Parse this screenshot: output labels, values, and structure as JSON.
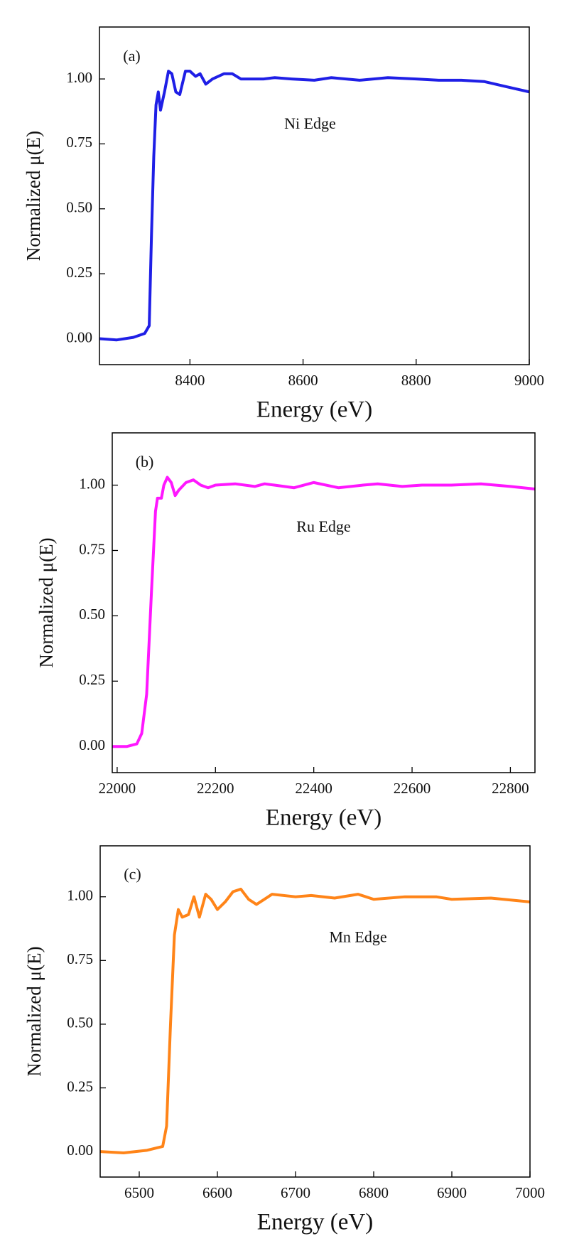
{
  "chart_data": [
    {
      "type": "line",
      "annotations": [
        "(a)",
        "Ni Edge"
      ],
      "x_label": "Energy (eV)",
      "y_label": "Normalized μ(E)",
      "x": [
        8240,
        8270,
        8300,
        8320,
        8328,
        8332,
        8336,
        8340,
        8344,
        8348,
        8355,
        8362,
        8368,
        8375,
        8382,
        8392,
        8400,
        8410,
        8418,
        8428,
        8440,
        8460,
        8475,
        8490,
        8510,
        8530,
        8550,
        8580,
        8620,
        8650,
        8700,
        8750,
        8800,
        8840,
        8880,
        8920,
        8960,
        9000
      ],
      "series": [
        {
          "color": "#1f1fe6",
          "values": [
            0,
            -0.005,
            0.005,
            0.02,
            0.05,
            0.4,
            0.7,
            0.9,
            0.95,
            0.88,
            0.95,
            1.03,
            1.02,
            0.95,
            0.94,
            1.03,
            1.03,
            1.01,
            1.02,
            0.98,
            1.0,
            1.02,
            1.02,
            1.0,
            1.0,
            1.0,
            1.005,
            1.0,
            0.995,
            1.005,
            0.995,
            1.005,
            1.0,
            0.995,
            0.995,
            0.99,
            0.97,
            0.95
          ]
        }
      ],
      "xlim": [
        8240,
        9000
      ],
      "xticks": [
        8400,
        8600,
        8800,
        9000
      ],
      "ylim": [
        -0.1,
        1.2
      ],
      "yticks": [
        {
          "value": 0,
          "label": "0.00"
        },
        {
          "value": 0.25,
          "label": "0.25"
        },
        {
          "value": 0.5,
          "label": "0.50"
        },
        {
          "value": 0.75,
          "label": "0.75"
        },
        {
          "value": 1,
          "label": "1.00"
        }
      ]
    },
    {
      "type": "line",
      "annotations": [
        "(b)",
        "Ru Edge"
      ],
      "x_label": "Energy (eV)",
      "y_label": "Normalized μ(E)",
      "x": [
        21990,
        22020,
        22040,
        22050,
        22060,
        22070,
        22078,
        22082,
        22090,
        22095,
        22102,
        22110,
        22118,
        22125,
        22140,
        22155,
        22170,
        22185,
        22200,
        22240,
        22280,
        22300,
        22320,
        22360,
        22400,
        22450,
        22500,
        22530,
        22580,
        22620,
        22680,
        22740,
        22800,
        22850
      ],
      "series": [
        {
          "color": "#ff17ff",
          "values": [
            0,
            0,
            0.01,
            0.05,
            0.2,
            0.6,
            0.9,
            0.95,
            0.95,
            1.0,
            1.03,
            1.01,
            0.96,
            0.98,
            1.01,
            1.02,
            1.0,
            0.99,
            1.0,
            1.005,
            0.995,
            1.005,
            1.0,
            0.99,
            1.01,
            0.99,
            1.0,
            1.005,
            0.995,
            1.0,
            1.0,
            1.005,
            0.995,
            0.985
          ]
        }
      ],
      "xlim": [
        21990,
        22850
      ],
      "xticks": [
        22000,
        22200,
        22400,
        22600,
        22800
      ],
      "ylim": [
        -0.1,
        1.2
      ],
      "yticks": [
        {
          "value": 0,
          "label": "0.00"
        },
        {
          "value": 0.25,
          "label": "0.25"
        },
        {
          "value": 0.5,
          "label": "0.50"
        },
        {
          "value": 0.75,
          "label": "0.75"
        },
        {
          "value": 1,
          "label": "1.00"
        }
      ]
    },
    {
      "type": "line",
      "annotations": [
        "(c)",
        "Mn Edge"
      ],
      "x_label": "Energy (eV)",
      "y_label": "Normalized μ(E)",
      "x": [
        6450,
        6480,
        6510,
        6530,
        6535,
        6540,
        6545,
        6550,
        6555,
        6563,
        6570,
        6577,
        6585,
        6592,
        6600,
        6610,
        6620,
        6630,
        6640,
        6650,
        6660,
        6670,
        6700,
        6720,
        6750,
        6780,
        6800,
        6840,
        6880,
        6900,
        6950,
        7000
      ],
      "series": [
        {
          "color": "#ff8418",
          "values": [
            0,
            -0.005,
            0.005,
            0.02,
            0.1,
            0.5,
            0.85,
            0.95,
            0.92,
            0.93,
            1.0,
            0.92,
            1.01,
            0.99,
            0.95,
            0.98,
            1.02,
            1.03,
            0.99,
            0.97,
            0.99,
            1.01,
            1.0,
            1.005,
            0.995,
            1.01,
            0.99,
            1.0,
            1.0,
            0.99,
            0.995,
            0.98
          ]
        }
      ],
      "xlim": [
        6450,
        7000
      ],
      "xticks": [
        6500,
        6600,
        6700,
        6800,
        6900,
        7000
      ],
      "ylim": [
        -0.1,
        1.2
      ],
      "yticks": [
        {
          "value": 0,
          "label": "0.00"
        },
        {
          "value": 0.25,
          "label": "0.25"
        },
        {
          "value": 0.5,
          "label": "0.50"
        },
        {
          "value": 0.75,
          "label": "0.75"
        },
        {
          "value": 1,
          "label": "1.00"
        }
      ]
    }
  ]
}
